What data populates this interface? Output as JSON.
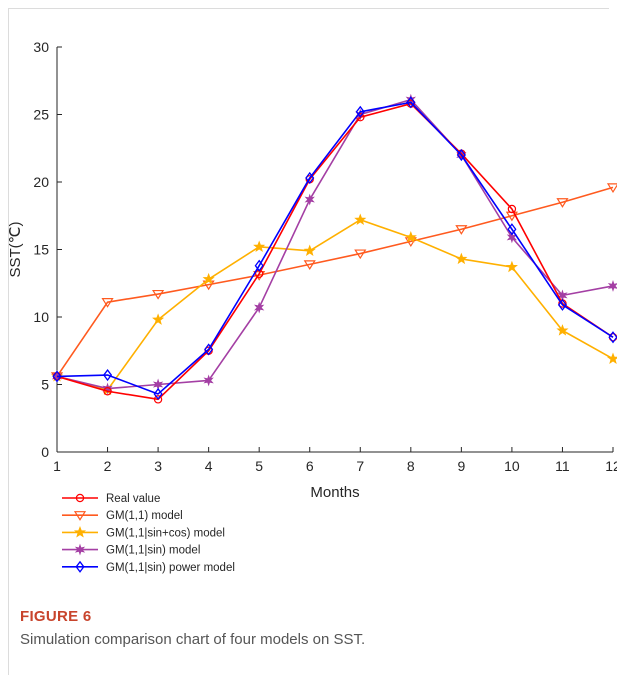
{
  "chart_data": {
    "type": "line",
    "xlabel": "Months",
    "ylabel": "SST(℃)",
    "x": [
      1,
      2,
      3,
      4,
      5,
      6,
      7,
      8,
      9,
      10,
      11,
      12
    ],
    "xlim": [
      1,
      12
    ],
    "ylim": [
      0,
      30
    ],
    "xticks": [
      "1",
      "2",
      "3",
      "4",
      "5",
      "6",
      "7",
      "8",
      "9",
      "10",
      "11",
      "12"
    ],
    "yticks": [
      "0",
      "5",
      "10",
      "15",
      "20",
      "25",
      "30"
    ],
    "ytick_values": [
      0,
      5,
      10,
      15,
      20,
      25,
      30
    ],
    "grid": false,
    "legend_position": "below-left",
    "series": [
      {
        "name": "Real value",
        "color": "#ff0000",
        "marker": "circle",
        "values": [
          5.6,
          4.5,
          3.9,
          7.5,
          13.2,
          20.2,
          24.8,
          25.8,
          22.1,
          18.0,
          11.0,
          8.5
        ]
      },
      {
        "name": "GM(1,1) model",
        "color": "#ff5a1f",
        "marker": "triangle-down",
        "values": [
          5.6,
          11.1,
          11.7,
          12.4,
          13.1,
          13.9,
          14.7,
          15.6,
          16.5,
          17.5,
          18.5,
          19.6
        ]
      },
      {
        "name": "GM(1,1|sin+cos) model",
        "color": "#ffb000",
        "marker": "star",
        "values": [
          5.6,
          4.6,
          9.8,
          12.8,
          15.2,
          14.9,
          17.2,
          15.9,
          14.3,
          13.7,
          9.0,
          6.9
        ]
      },
      {
        "name": "GM(1,1|sin) model",
        "color": "#a43fa4",
        "marker": "hexagram",
        "values": [
          5.6,
          4.7,
          5.0,
          5.3,
          10.7,
          18.7,
          25.0,
          26.1,
          22.0,
          15.9,
          11.6,
          12.3
        ]
      },
      {
        "name": "GM(1,1|sin) power model",
        "color": "#0000ff",
        "marker": "diamond",
        "values": [
          5.6,
          5.7,
          4.3,
          7.6,
          13.8,
          20.3,
          25.2,
          25.9,
          22.0,
          16.5,
          10.9,
          8.5
        ]
      }
    ]
  },
  "figure": {
    "label": "FIGURE 6",
    "caption": "Simulation comparison chart of four models on SST."
  }
}
